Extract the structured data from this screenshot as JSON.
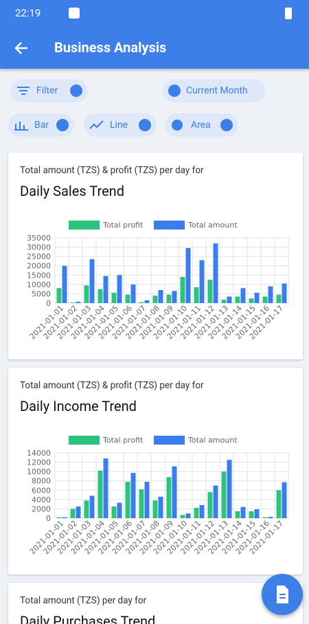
{
  "status_bar": {
    "time": "22:19"
  },
  "header": {
    "title": "Business Analysis"
  },
  "chips": [
    "Filter",
    "Current Month",
    "Bar",
    "Line",
    "Area"
  ],
  "chart_data": [
    {
      "type": "bar",
      "subtitle": "Total amount (TZS) & profit (TZS) per day for",
      "title": "Daily Sales Trend",
      "categories": [
        "2021-01-01",
        "2021-01-02",
        "2021-01-03",
        "2021-01-04",
        "2021-01-05",
        "2021-01-06",
        "2021-01-07",
        "2021-01-08",
        "2021-01-09",
        "2021-01-10",
        "2021-01-11",
        "2021-01-12",
        "2021-01-13",
        "2021-01-14",
        "2021-01-15",
        "2021-01-16",
        "2021-01-17"
      ],
      "series": [
        {
          "name": "Total profit",
          "color": "#2bc47d",
          "values": [
            8000,
            300,
            9500,
            7500,
            5500,
            4500,
            500,
            4000,
            4500,
            14000,
            8500,
            12500,
            1800,
            3500,
            2500,
            3500,
            4500
          ]
        },
        {
          "name": "Total amount",
          "color": "#3b7ded",
          "values": [
            20000,
            700,
            23500,
            14500,
            15000,
            10000,
            1500,
            7000,
            6500,
            29500,
            23000,
            32000,
            3500,
            8000,
            5500,
            9000,
            10500
          ]
        }
      ],
      "ylim": [
        0,
        35000
      ],
      "yticks": [
        0,
        5000,
        10000,
        15000,
        20000,
        25000,
        30000,
        35000
      ],
      "grid": true
    },
    {
      "type": "bar",
      "subtitle": "Total amount (TZS) & profit (TZS) per day for",
      "title": "Daily Income Trend",
      "categories": [
        "2021-01-01",
        "2021-01-02",
        "2021-01-03",
        "2021-01-04",
        "2021-01-05",
        "2021-01-06",
        "2021-01-07",
        "2021-01-08",
        "2021-01-09",
        "2021-01-10",
        "2021-01-11",
        "2021-01-12",
        "2021-01-13",
        "2021-01-14",
        "2021-01-15",
        "2021-01-16",
        "2021-01-17"
      ],
      "series": [
        {
          "name": "Total profit",
          "color": "#2bc47d",
          "values": [
            200,
            2000,
            3800,
            10200,
            2500,
            7800,
            6200,
            3800,
            8800,
            700,
            2200,
            5600,
            10000,
            1500,
            1500,
            200,
            6000
          ]
        },
        {
          "name": "Total amount",
          "color": "#3b7ded",
          "values": [
            200,
            2500,
            4800,
            12800,
            3300,
            9700,
            7800,
            4600,
            11100,
            1000,
            2800,
            7000,
            12500,
            2400,
            1900,
            300,
            7700
          ]
        }
      ],
      "ylim": [
        0,
        14000
      ],
      "yticks": [
        0,
        2000,
        4000,
        6000,
        8000,
        10000,
        12000,
        14000
      ],
      "grid": true
    }
  ],
  "card3": {
    "subtitle": "Total amount (TZS) per day for",
    "title": "Daily Purchases Trend"
  }
}
